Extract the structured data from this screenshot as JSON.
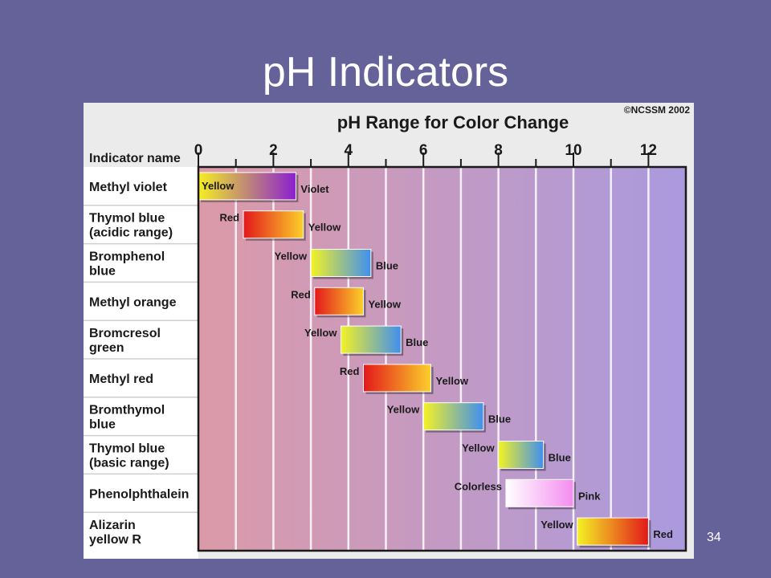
{
  "slide": {
    "title": "pH Indicators",
    "page_number": "34",
    "background_color": "#656199"
  },
  "chart_data": {
    "type": "bar",
    "orientation": "horizontal-range",
    "title": "pH Range for Color Change",
    "copyright": "©NCSSM 2002",
    "row_header": "Indicator name",
    "xlim": [
      0,
      13
    ],
    "xticks": [
      0,
      2,
      4,
      6,
      8,
      10,
      12
    ],
    "grid": true,
    "indicators": [
      {
        "lines": [
          "Methyl violet"
        ],
        "range": [
          0.0,
          2.6
        ],
        "low_label": "Yellow",
        "high_label": "Violet",
        "low_color": "#f4ef22",
        "high_color": "#8b1fcf",
        "low_label_inside": true
      },
      {
        "lines": [
          "Thymol blue",
          "(acidic range)"
        ],
        "range": [
          1.2,
          2.8
        ],
        "low_label": "Red",
        "high_label": "Yellow",
        "low_color": "#e3181b",
        "high_color": "#fbd02a"
      },
      {
        "lines": [
          "Bromphenol",
          "blue"
        ],
        "range": [
          3.0,
          4.6
        ],
        "low_label": "Yellow",
        "high_label": "Blue",
        "low_color": "#f4f224",
        "high_color": "#3f8ff0"
      },
      {
        "lines": [
          "Methyl orange"
        ],
        "range": [
          3.1,
          4.4
        ],
        "low_label": "Red",
        "high_label": "Yellow",
        "low_color": "#e3181b",
        "high_color": "#fbd02a"
      },
      {
        "lines": [
          "Bromcresol",
          "green"
        ],
        "range": [
          3.8,
          5.4
        ],
        "low_label": "Yellow",
        "high_label": "Blue",
        "low_color": "#f4f224",
        "high_color": "#3f8ff0"
      },
      {
        "lines": [
          "Methyl red"
        ],
        "range": [
          4.4,
          6.2
        ],
        "low_label": "Red",
        "high_label": "Yellow",
        "low_color": "#e3181b",
        "high_color": "#fbd02a"
      },
      {
        "lines": [
          "Bromthymol",
          "blue"
        ],
        "range": [
          6.0,
          7.6
        ],
        "low_label": "Yellow",
        "high_label": "Blue",
        "low_color": "#f4f224",
        "high_color": "#3f8ff0"
      },
      {
        "lines": [
          "Thymol blue",
          "(basic range)"
        ],
        "range": [
          8.0,
          9.2
        ],
        "low_label": "Yellow",
        "high_label": "Blue",
        "low_color": "#f4f224",
        "high_color": "#3f8ff0"
      },
      {
        "lines": [
          "Phenolphthalein"
        ],
        "range": [
          8.2,
          10.0
        ],
        "low_label": "Colorless",
        "high_label": "Pink",
        "low_color": "#ffffff",
        "high_color": "#f48cf0"
      },
      {
        "lines": [
          "Alizarin",
          "yellow R"
        ],
        "range": [
          10.1,
          12.0
        ],
        "low_label": "Yellow",
        "high_label": "Red",
        "low_color": "#f4f224",
        "high_color": "#e3181b"
      }
    ]
  }
}
